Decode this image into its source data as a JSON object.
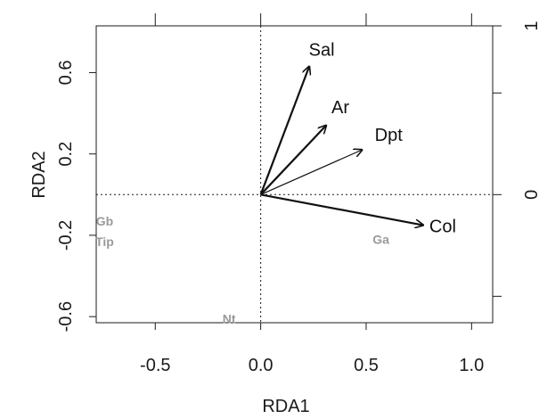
{
  "chart_data": {
    "type": "biplot",
    "xlabel": "RDA1",
    "ylabel": "RDA2",
    "xlim": [
      -0.78,
      1.1
    ],
    "ylim": [
      -0.63,
      0.83
    ],
    "x_ticks": [
      {
        "value": -0.5,
        "label": "-0.5"
      },
      {
        "value": 0.0,
        "label": "0.0"
      },
      {
        "value": 0.5,
        "label": "0.5"
      },
      {
        "value": 1.0,
        "label": "1.0"
      }
    ],
    "y_ticks": [
      {
        "value": -0.6,
        "label": "-0.6"
      },
      {
        "value": -0.2,
        "label": "-0.2"
      },
      {
        "value": 0.2,
        "label": "0.2"
      },
      {
        "value": 0.6,
        "label": "0.6"
      }
    ],
    "secondary_right_ticks": [
      {
        "label": "1"
      },
      {
        "label": "0"
      }
    ],
    "reference_lines": {
      "x": 0,
      "y": 0,
      "style": "dotted"
    },
    "arrows": [
      {
        "name": "Sal",
        "x": 0.23,
        "y": 0.63,
        "weight": "thick"
      },
      {
        "name": "Ar",
        "x": 0.31,
        "y": 0.34,
        "weight": "thick"
      },
      {
        "name": "Dpt",
        "x": 0.48,
        "y": 0.22,
        "weight": "thin"
      },
      {
        "name": "Col",
        "x": 0.77,
        "y": -0.15,
        "weight": "thick"
      }
    ],
    "site_labels": [
      {
        "name": "Gb",
        "x": -0.74,
        "y": -0.13
      },
      {
        "name": "Tip",
        "x": -0.74,
        "y": -0.23
      },
      {
        "name": "Ga",
        "x": 0.57,
        "y": -0.22
      },
      {
        "name": "Nt",
        "x": -0.15,
        "y": -0.61
      }
    ],
    "colors": {
      "arrows": "#111111",
      "sites": "#9a9a9a",
      "axes": "#1a1a1a"
    },
    "grid": false
  }
}
